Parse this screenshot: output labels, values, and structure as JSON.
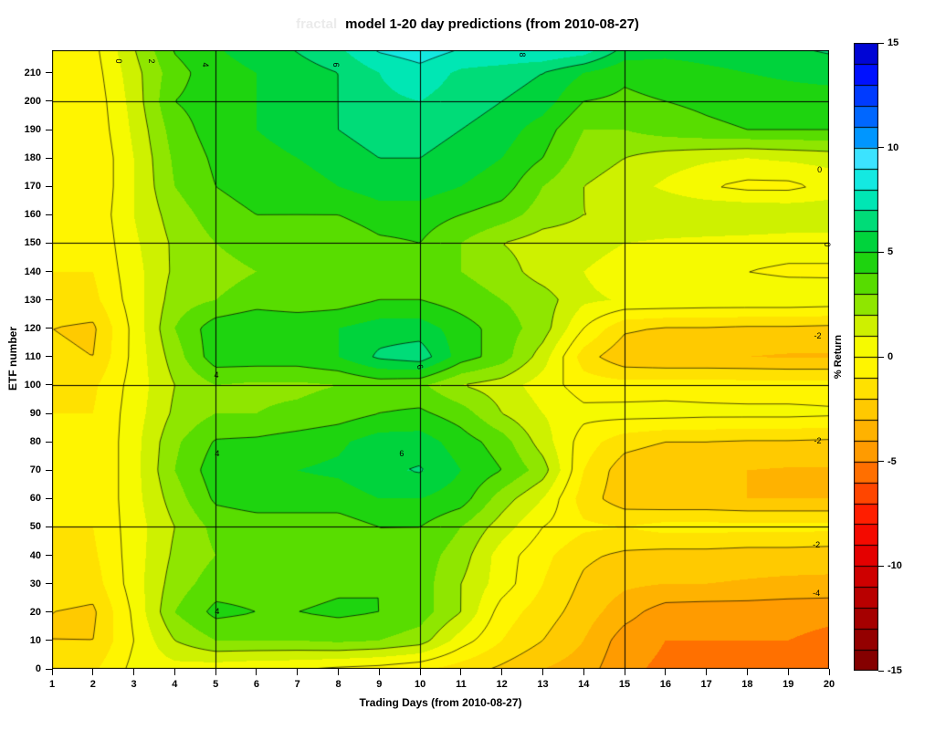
{
  "title": {
    "faint_prefix": "fractal",
    "faint_color": "#ebebeb",
    "main": "model 1-20 day predictions (from 2010-08-27)"
  },
  "chart_data": {
    "type": "heatmap",
    "title": "model 1-20 day predictions (from 2010-08-27)",
    "xlabel": "Trading Days (from 2010-08-27)",
    "ylabel": "ETF number",
    "colorbar_label": "% Return",
    "xlim": [
      1,
      20
    ],
    "ylim": [
      0,
      218
    ],
    "x_ticks": [
      1,
      2,
      3,
      4,
      5,
      6,
      7,
      8,
      9,
      10,
      11,
      12,
      13,
      14,
      15,
      16,
      17,
      18,
      19,
      20
    ],
    "y_ticks": [
      0,
      10,
      20,
      30,
      40,
      50,
      60,
      70,
      80,
      90,
      100,
      110,
      120,
      130,
      140,
      150,
      160,
      170,
      180,
      190,
      200,
      210
    ],
    "colorbar_ticks": [
      15,
      10,
      5,
      0,
      -5,
      -10,
      -15
    ],
    "colorbar_range": [
      -15,
      15
    ],
    "grid_on": true,
    "grid_lines": {
      "days": [
        5,
        10,
        15
      ],
      "etfs": [
        50,
        100,
        150,
        200
      ]
    },
    "legend_position": "right",
    "contour_levels": [
      -4,
      -2,
      0,
      2,
      4,
      6,
      8
    ],
    "contour_labels": [
      {
        "text": "0",
        "day": 2.63,
        "etf": 214,
        "rot": 90
      },
      {
        "text": "2",
        "day": 3.43,
        "etf": 214,
        "rot": 90
      },
      {
        "text": "4",
        "day": 4.75,
        "etf": 213,
        "rot": 90
      },
      {
        "text": "6",
        "day": 7.94,
        "etf": 213,
        "rot": 90
      },
      {
        "text": "8",
        "day": 12.5,
        "etf": 216.5,
        "rot": 90
      },
      {
        "text": "0",
        "day": 19.77,
        "etf": 176,
        "rot": 0
      },
      {
        "text": "0",
        "day": 19.95,
        "etf": 149.5,
        "rot": 90
      },
      {
        "text": "4",
        "day": 5.02,
        "etf": 103.5,
        "rot": 0
      },
      {
        "text": "6",
        "day": 10.0,
        "etf": 106.4,
        "rot": 75
      },
      {
        "text": "4",
        "day": 5.04,
        "etf": 76,
        "rot": 0
      },
      {
        "text": "6",
        "day": 9.55,
        "etf": 76,
        "rot": 0
      },
      {
        "text": "4",
        "day": 5.04,
        "etf": 20.3,
        "rot": 0
      },
      {
        "text": "-2",
        "day": 19.72,
        "etf": 117.3,
        "rot": 0
      },
      {
        "text": "-2",
        "day": 19.72,
        "etf": 80.4,
        "rot": 0
      },
      {
        "text": "-2",
        "day": 19.69,
        "etf": 43.7,
        "rot": 0
      },
      {
        "text": "-4",
        "day": 19.69,
        "etf": 26.7,
        "rot": 0
      }
    ],
    "x": [
      1,
      2,
      3,
      4,
      5,
      6,
      7,
      8,
      9,
      10,
      11,
      12,
      13,
      14,
      15,
      16,
      17,
      18,
      19,
      20
    ],
    "y": [
      0,
      10,
      20,
      30,
      40,
      50,
      60,
      70,
      80,
      90,
      100,
      110,
      120,
      130,
      140,
      150,
      160,
      170,
      180,
      190,
      200,
      210,
      220
    ],
    "values": [
      [
        -1,
        -1.2,
        0.3,
        0.6,
        0.4,
        0.2,
        0.1,
        -0.2,
        -0.4,
        -0.8,
        -1.5,
        -2.2,
        -3,
        -3.5,
        -4.8,
        -5.2,
        -5.3,
        -5.3,
        -5.4,
        -5.5
      ],
      [
        -2,
        -2,
        0,
        2,
        3,
        3,
        3,
        3.2,
        3,
        2.5,
        0.5,
        -1,
        -2,
        -3,
        -4.5,
        -5,
        -5,
        -5,
        -5,
        -5.2
      ],
      [
        -2,
        -2.2,
        0.2,
        3,
        4.3,
        4,
        4,
        4.2,
        4,
        3.5,
        2,
        -0.5,
        -1.5,
        -2.5,
        -3.6,
        -4.5,
        -4.6,
        -4.6,
        -4.7,
        -4.8
      ],
      [
        -1.3,
        -1.5,
        0.5,
        2.5,
        3.5,
        3.5,
        3.6,
        3.8,
        4,
        3.5,
        2,
        0.5,
        -1,
        -2.2,
        -2.8,
        -3,
        -3,
        -3.1,
        -3.2,
        -3.2
      ],
      [
        -1,
        -1.2,
        0.5,
        2.2,
        3,
        3.2,
        3.4,
        3.6,
        3.8,
        3.5,
        2.5,
        0.5,
        -0.7,
        -1.8,
        -2.2,
        -2.4,
        -2.4,
        -2.5,
        -2.5,
        -2.6
      ],
      [
        -1,
        -1,
        0.5,
        2,
        3.3,
        3.5,
        3.5,
        3.5,
        4,
        4,
        3,
        1.5,
        0,
        -0.8,
        -1,
        -0.6,
        -0.6,
        -0.7,
        -0.7,
        -0.7
      ],
      [
        -1,
        -1,
        0.6,
        2.5,
        4.2,
        4.5,
        4.5,
        4.5,
        5,
        5,
        4.5,
        2.5,
        1,
        -1.5,
        -2.6,
        -2.9,
        -2.9,
        -3,
        -3,
        -3
      ],
      [
        -1,
        -1,
        0.6,
        3,
        4.6,
        5,
        5,
        5.2,
        5.8,
        6.1,
        5,
        4,
        2.5,
        -1,
        -2.6,
        -3,
        -3,
        -3,
        -3.1,
        -3.1
      ],
      [
        -1,
        -1,
        0.6,
        2.8,
        4.1,
        4.2,
        4.5,
        4.8,
        5.5,
        5.5,
        4.5,
        3.5,
        1.5,
        -0.5,
        -1.6,
        -2,
        -2,
        -2.1,
        -2.1,
        -2.2
      ],
      [
        -1,
        -1,
        0.5,
        2.2,
        3,
        3,
        3.2,
        3.5,
        4,
        4.2,
        3.5,
        2,
        1,
        0.3,
        0.4,
        0.4,
        0.3,
        0.3,
        0.3,
        0.2
      ],
      [
        -1,
        -1.2,
        0.4,
        2,
        3,
        2.8,
        2.8,
        3,
        3.4,
        3.2,
        2,
        1.5,
        0.5,
        -0.5,
        -0.6,
        -0.5,
        -0.5,
        -0.6,
        -0.6,
        -0.6
      ],
      [
        -1.8,
        -2,
        0.3,
        2.5,
        4.6,
        4.6,
        4.6,
        5,
        6.2,
        6.6,
        4.5,
        3.5,
        1.5,
        -1.5,
        -2.8,
        -3,
        -3,
        -3,
        -3.1,
        -3.1
      ],
      [
        -2,
        -2.2,
        0.3,
        3,
        4.6,
        5,
        5,
        5,
        5.5,
        5.5,
        4.5,
        3.5,
        2.5,
        0,
        -1.8,
        -2.1,
        -2.1,
        -2.2,
        -2.2,
        -2.3
      ],
      [
        -1.2,
        -1.3,
        0.5,
        2.5,
        3,
        3.5,
        3.2,
        3.5,
        4,
        4,
        3.5,
        3,
        2.5,
        1.2,
        0.9,
        0.9,
        0.8,
        0.8,
        0.8,
        0.7
      ],
      [
        -1,
        -1,
        0.6,
        2.2,
        2.6,
        3,
        3,
        3,
        3.5,
        3.5,
        3,
        2.5,
        1.5,
        1,
        0.4,
        0.3,
        0.2,
        0,
        -0.2,
        -0.2
      ],
      [
        -0.8,
        -0.9,
        0.8,
        2.2,
        3,
        3.5,
        3,
        3.2,
        3.8,
        4,
        3,
        2,
        1.5,
        1.5,
        1,
        0.8,
        0.7,
        0.6,
        0.5,
        0.5
      ],
      [
        -0.6,
        -0.8,
        1,
        2.5,
        3.5,
        4,
        4,
        4,
        4.5,
        4.5,
        4,
        3.5,
        2.5,
        2,
        2,
        2,
        2,
        2,
        1.9,
        1.8
      ],
      [
        -0.8,
        -1,
        1,
        3,
        4,
        4.5,
        4.5,
        5,
        5.5,
        5.5,
        5,
        4.5,
        3,
        2,
        1.5,
        0.8,
        0.1,
        -0.3,
        -0.3,
        0.3
      ],
      [
        -1,
        -1,
        1,
        3.2,
        4.2,
        4.6,
        5,
        5.5,
        6,
        6,
        5.5,
        5,
        4,
        2.5,
        2,
        1.5,
        1.2,
        1,
        1.2,
        1.4
      ],
      [
        -1,
        -0.8,
        1.2,
        3.5,
        4.5,
        5,
        5.5,
        6,
        6.5,
        6.5,
        6,
        5.5,
        4.5,
        3,
        3,
        3.5,
        3.8,
        4,
        4,
        4
      ],
      [
        -1,
        -0.7,
        1.4,
        4,
        4.5,
        5,
        5.5,
        6,
        6.8,
        7,
        6.5,
        6,
        5.5,
        4,
        3.8,
        4,
        4.2,
        4.4,
        4.5,
        4.5
      ],
      [
        -1,
        -0.5,
        1.6,
        3.6,
        4.6,
        5,
        5.5,
        6,
        7,
        7.6,
        6.8,
        6.5,
        6,
        5,
        4.2,
        4.5,
        4.8,
        5,
        5.2,
        5.4
      ],
      [
        -1,
        -0.3,
        2,
        4.2,
        5,
        5.5,
        6.2,
        7,
        8.4,
        8.8,
        8.2,
        8.3,
        8.5,
        8.2,
        6,
        5.5,
        5.5,
        5.6,
        6,
        6.3
      ]
    ],
    "colormap_stops": [
      [
        -15,
        "#7e0000"
      ],
      [
        -13,
        "#9c0000"
      ],
      [
        -11,
        "#c30000"
      ],
      [
        -9,
        "#ef0000"
      ],
      [
        -7.5,
        "#ff1e00"
      ],
      [
        -6,
        "#ff5a00"
      ],
      [
        -4.5,
        "#ff9b00"
      ],
      [
        -3,
        "#ffbe00"
      ],
      [
        -1.5,
        "#ffe100"
      ],
      [
        0,
        "#ffff00"
      ],
      [
        1,
        "#eef600"
      ],
      [
        2.5,
        "#8fe600"
      ],
      [
        4,
        "#3cd800"
      ],
      [
        5,
        "#00cf1e"
      ],
      [
        6.5,
        "#00dc78"
      ],
      [
        8,
        "#00ecd2"
      ],
      [
        9.5,
        "#3ce3ff"
      ],
      [
        10.5,
        "#0096ff"
      ],
      [
        12,
        "#0050ff"
      ],
      [
        13.5,
        "#0011ff"
      ],
      [
        15,
        "#0000c0"
      ]
    ]
  }
}
